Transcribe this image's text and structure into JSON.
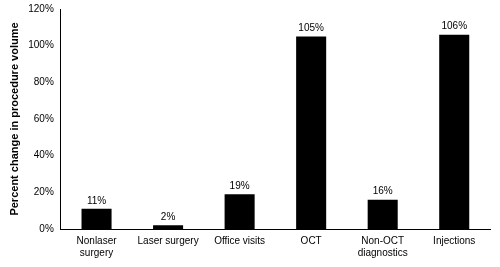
{
  "chart_data": {
    "type": "bar",
    "y_label": "Percent change in procedure volume",
    "categories": [
      "Nonlaser surgery",
      "Laser surgery",
      "Office visits",
      "OCT",
      "Non-OCT diagnostics",
      "Injections"
    ],
    "values": [
      11,
      2,
      19,
      105,
      16,
      106
    ],
    "value_labels": [
      "11%",
      "2%",
      "19%",
      "105%",
      "16%",
      "106%"
    ],
    "color": "#000000",
    "ylim": [
      0,
      120
    ],
    "yticks": [
      {
        "value": 0,
        "label": "0%"
      },
      {
        "value": 20,
        "label": "20%"
      },
      {
        "value": 40,
        "label": "40%"
      },
      {
        "value": 60,
        "label": "60%"
      },
      {
        "value": 80,
        "label": "80%"
      },
      {
        "value": 100,
        "label": "100%"
      },
      {
        "value": 120,
        "label": "120%"
      }
    ],
    "grid": false,
    "data_labels": true
  }
}
